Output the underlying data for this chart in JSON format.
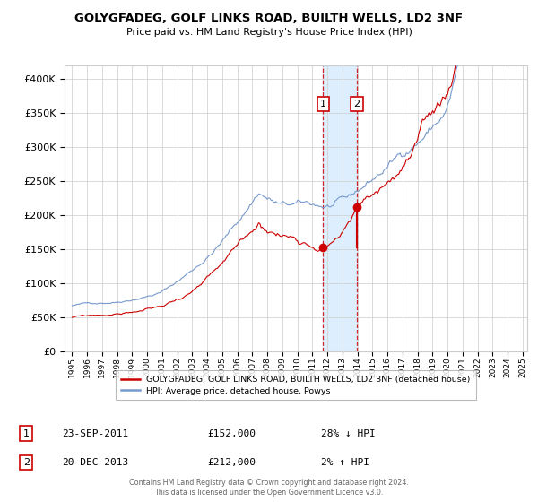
{
  "title": "GOLYGFADEG, GOLF LINKS ROAD, BUILTH WELLS, LD2 3NF",
  "subtitle": "Price paid vs. HM Land Registry's House Price Index (HPI)",
  "legend_line1": "GOLYGFADEG, GOLF LINKS ROAD, BUILTH WELLS, LD2 3NF (detached house)",
  "legend_line2": "HPI: Average price, detached house, Powys",
  "transaction1_date": "23-SEP-2011",
  "transaction1_price": 152000,
  "transaction1_hpi": "28% ↓ HPI",
  "transaction2_date": "20-DEC-2013",
  "transaction2_price": 212000,
  "transaction2_hpi": "2% ↑ HPI",
  "footer": "Contains HM Land Registry data © Crown copyright and database right 2024.\nThis data is licensed under the Open Government Licence v3.0.",
  "red_color": "#cc0000",
  "blue_color": "#7799cc",
  "background_color": "#ffffff",
  "grid_color": "#cccccc",
  "highlight_color": "#ddeeff",
  "dashed_line_color": "#cc0000",
  "ylim": [
    0,
    420000
  ],
  "yticks": [
    0,
    50000,
    100000,
    150000,
    200000,
    250000,
    300000,
    350000,
    400000
  ],
  "start_year": 1995,
  "end_year": 2025,
  "transaction1_year": 2011.72,
  "transaction2_year": 2013.97
}
